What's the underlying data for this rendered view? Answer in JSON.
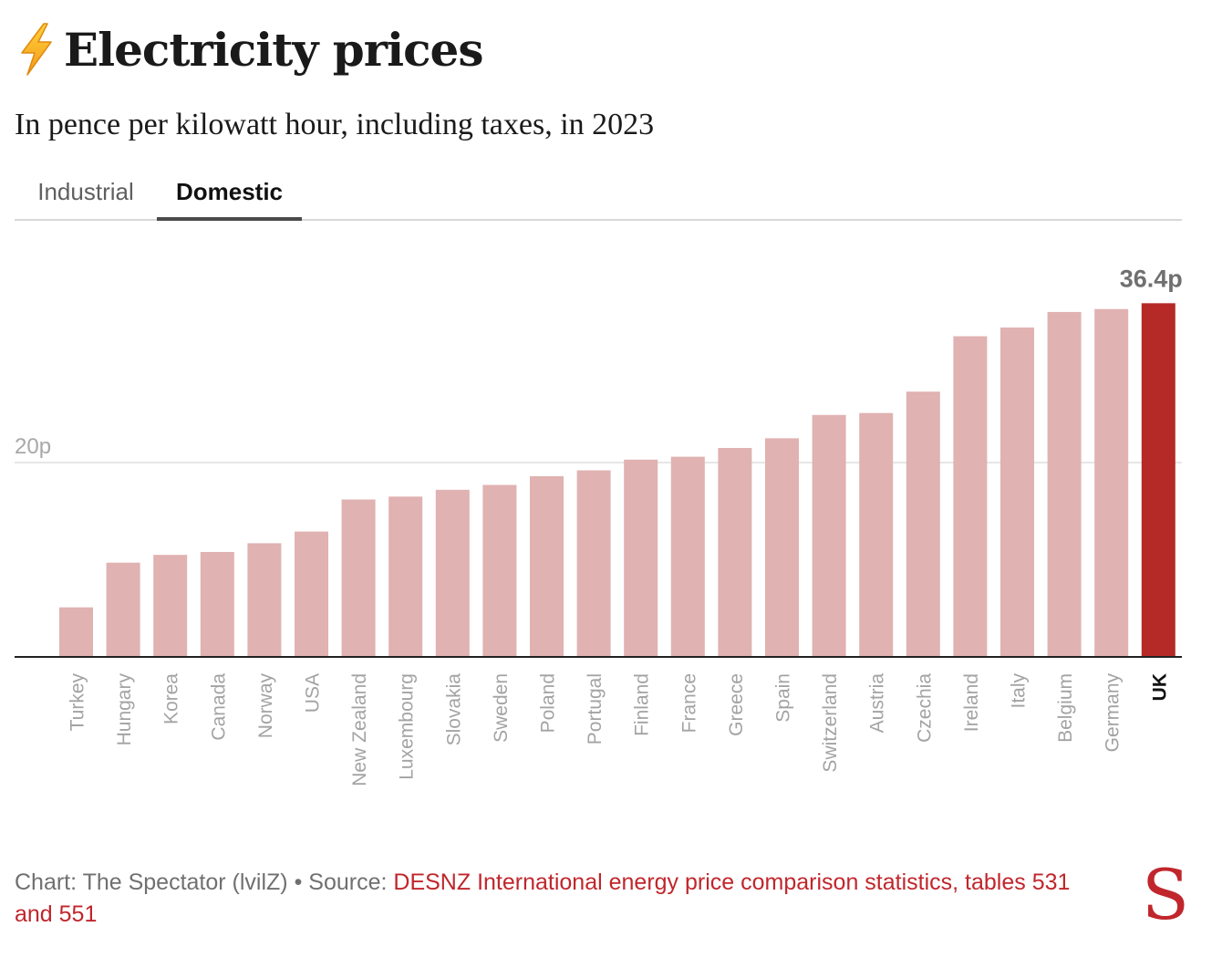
{
  "header": {
    "icon": "lightning-bolt-icon",
    "title": "Electricity prices",
    "subtitle": "In pence per kilowatt hour, including taxes, in 2023"
  },
  "tabs": [
    {
      "label": "Industrial",
      "active": false
    },
    {
      "label": "Domestic",
      "active": true
    }
  ],
  "colors": {
    "bar": "#e0b2b1",
    "highlight_bar": "#b52a26",
    "link": "#c0262c"
  },
  "chart_data": {
    "type": "bar",
    "categories": [
      "Turkey",
      "Hungary",
      "Korea",
      "Canada",
      "Norway",
      "USA",
      "New Zealand",
      "Luxembourg",
      "Slovakia",
      "Sweden",
      "Poland",
      "Portugal",
      "Finland",
      "France",
      "Greece",
      "Spain",
      "Switzerland",
      "Austria",
      "Czechia",
      "Ireland",
      "Italy",
      "Belgium",
      "Germany",
      "UK"
    ],
    "values": [
      5.1,
      9.7,
      10.5,
      10.8,
      11.7,
      12.9,
      16.2,
      16.5,
      17.2,
      17.7,
      18.6,
      19.2,
      20.3,
      20.6,
      21.5,
      22.5,
      24.9,
      25.1,
      27.3,
      33.0,
      33.9,
      35.5,
      35.8,
      36.4
    ],
    "highlight": "UK",
    "highlight_label": "36.4p",
    "yticks": [
      {
        "value": 20,
        "label": "20p"
      }
    ],
    "ylim": [
      0,
      40
    ],
    "grid": true
  },
  "footer": {
    "credit": "Chart: The Spectator (lvilZ) • Source: ",
    "source_link": "DESNZ International energy price comparison statistics, tables 531 and 551",
    "logo": "S"
  }
}
